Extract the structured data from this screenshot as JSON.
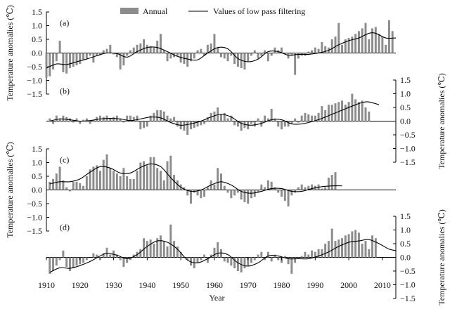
{
  "chart_data": {
    "type": "bar",
    "legend": {
      "position": "top",
      "items": [
        {
          "label": "Annual",
          "kind": "bar",
          "color": "#8c8c8c"
        },
        {
          "label": "Values of low pass filtering",
          "kind": "line",
          "color": "#000000"
        }
      ]
    },
    "x_axis": {
      "label": "Year",
      "range": [
        1910,
        2014
      ],
      "ticks": [
        1910,
        1920,
        1930,
        1940,
        1950,
        1960,
        1970,
        1980,
        1990,
        2000,
        2010
      ]
    },
    "y_axis": {
      "label": "Temperature anomalies (℃)",
      "range": [
        -1.5,
        1.5
      ],
      "ticks": [
        -1.5,
        -1.0,
        -0.5,
        0.0,
        0.5,
        1.0,
        1.5
      ],
      "tick_labels": [
        "−1.5",
        "−1.0",
        "−0.5",
        "0.0",
        "0.5",
        "1.0",
        "1.5"
      ]
    },
    "bar_color": "#8c8c8c",
    "line_color": "#000000",
    "panels": [
      {
        "label": "(a)",
        "axis_side": "left",
        "start_year": 1910,
        "annual": [
          -0.9,
          -0.85,
          -0.6,
          -0.3,
          0.45,
          -0.7,
          -0.75,
          -0.55,
          -0.5,
          -0.45,
          -0.4,
          -0.25,
          -0.2,
          -0.1,
          -0.35,
          -0.1,
          -0.05,
          0.1,
          0.15,
          0.3,
          -0.05,
          -0.15,
          -0.6,
          -0.45,
          -0.1,
          0.1,
          0.2,
          0.3,
          0.35,
          0.5,
          0.3,
          0.25,
          0.2,
          0.45,
          0.7,
          0.1,
          -0.3,
          -0.2,
          -0.15,
          -0.1,
          -0.35,
          -0.4,
          -0.5,
          -0.3,
          -0.2,
          0.1,
          0.15,
          -0.1,
          0.3,
          0.35,
          0.7,
          0.2,
          -0.15,
          -0.2,
          -0.3,
          -0.1,
          -0.4,
          -0.5,
          -0.55,
          -0.6,
          -0.3,
          -0.1,
          0.1,
          -0.2,
          -0.1,
          0.1,
          -0.3,
          -0.1,
          0.2,
          0.1,
          0.2,
          -0.05,
          -0.2,
          -0.1,
          -0.8,
          -0.2,
          -0.1,
          -0.1,
          0.05,
          0.1,
          0.2,
          0.15,
          0.4,
          0.25,
          0.2,
          0.5,
          0.6,
          1.1,
          0.3,
          0.5,
          0.55,
          0.6,
          0.7,
          0.8,
          0.9,
          1.1,
          0.5,
          0.9,
          0.95,
          0.7,
          0.6,
          0.3,
          1.2,
          0.8
        ],
        "smooth": [
          [
            1910,
            -0.55
          ],
          [
            1913,
            -0.4
          ],
          [
            1916,
            -0.42
          ],
          [
            1919,
            -0.32
          ],
          [
            1922,
            -0.22
          ],
          [
            1925,
            -0.1
          ],
          [
            1928,
            0.0
          ],
          [
            1931,
            -0.02
          ],
          [
            1934,
            -0.15
          ],
          [
            1937,
            0.05
          ],
          [
            1940,
            0.2
          ],
          [
            1943,
            0.2
          ],
          [
            1946,
            0.05
          ],
          [
            1949,
            -0.12
          ],
          [
            1952,
            -0.22
          ],
          [
            1955,
            -0.25
          ],
          [
            1958,
            0.0
          ],
          [
            1961,
            0.2
          ],
          [
            1964,
            0.15
          ],
          [
            1967,
            -0.2
          ],
          [
            1970,
            -0.32
          ],
          [
            1973,
            -0.22
          ],
          [
            1976,
            0.05
          ],
          [
            1979,
            0.05
          ],
          [
            1982,
            -0.08
          ],
          [
            1985,
            -0.05
          ],
          [
            1988,
            -0.05
          ],
          [
            1991,
            0.0
          ],
          [
            1994,
            0.1
          ],
          [
            1997,
            0.3
          ],
          [
            2000,
            0.45
          ],
          [
            2003,
            0.55
          ],
          [
            2006,
            0.72
          ],
          [
            2008,
            0.72
          ],
          [
            2011,
            0.55
          ],
          [
            2014,
            0.55
          ]
        ]
      },
      {
        "label": "(b)",
        "axis_side": "right",
        "start_year": 1911,
        "annual": [
          0.1,
          -0.1,
          0.2,
          0.1,
          0.2,
          0.15,
          0.1,
          -0.05,
          0.1,
          -0.1,
          0.05,
          0.1,
          -0.1,
          0.05,
          0.15,
          0.2,
          0.15,
          0.2,
          0.1,
          0.15,
          0.2,
          0.1,
          -0.05,
          0.2,
          0.2,
          0.15,
          0.2,
          -0.3,
          -0.25,
          -0.2,
          0.2,
          0.3,
          0.4,
          0.4,
          0.35,
          0.2,
          0.1,
          0.15,
          -0.2,
          -0.3,
          -0.35,
          -0.5,
          -0.3,
          -0.25,
          -0.2,
          -0.15,
          -0.1,
          0.15,
          0.3,
          0.35,
          0.5,
          0.25,
          0.3,
          0.1,
          0.2,
          -0.15,
          -0.2,
          -0.35,
          -0.25,
          -0.3,
          -0.1,
          -0.2,
          0.1,
          -0.2,
          0.2,
          0.1,
          0.45,
          0.1,
          -0.2,
          -0.3,
          -0.2,
          -0.2,
          -0.1,
          0.1,
          -0.05,
          0.2,
          0.3,
          0.25,
          0.2,
          0.2,
          0.3,
          0.55,
          0.4,
          0.6,
          0.6,
          0.65,
          0.7,
          0.75,
          0.6,
          0.7,
          1.0,
          0.8,
          0.7,
          0.75,
          0.5,
          0.35
        ],
        "smooth": [
          [
            1911,
            0.0
          ],
          [
            1914,
            0.08
          ],
          [
            1917,
            0.05
          ],
          [
            1920,
            0.0
          ],
          [
            1923,
            0.02
          ],
          [
            1926,
            0.08
          ],
          [
            1929,
            0.1
          ],
          [
            1932,
            0.08
          ],
          [
            1935,
            0.02
          ],
          [
            1938,
            0.08
          ],
          [
            1941,
            0.15
          ],
          [
            1944,
            0.12
          ],
          [
            1947,
            -0.05
          ],
          [
            1950,
            -0.15
          ],
          [
            1953,
            -0.1
          ],
          [
            1956,
            0.0
          ],
          [
            1959,
            0.15
          ],
          [
            1962,
            0.25
          ],
          [
            1965,
            0.15
          ],
          [
            1968,
            -0.08
          ],
          [
            1971,
            -0.15
          ],
          [
            1974,
            -0.08
          ],
          [
            1977,
            0.05
          ],
          [
            1980,
            0.05
          ],
          [
            1983,
            -0.1
          ],
          [
            1986,
            -0.1
          ],
          [
            1989,
            -0.02
          ],
          [
            1992,
            0.1
          ],
          [
            1995,
            0.25
          ],
          [
            1998,
            0.4
          ],
          [
            2001,
            0.55
          ],
          [
            2004,
            0.68
          ],
          [
            2006,
            0.7
          ],
          [
            2009,
            0.6
          ]
        ]
      },
      {
        "label": "(c)",
        "axis_side": "left",
        "start_year": 1911,
        "annual": [
          0.3,
          0.4,
          0.6,
          0.85,
          0.35,
          0.1,
          -0.05,
          0.3,
          0.3,
          0.25,
          0.15,
          0.5,
          0.75,
          0.85,
          0.9,
          0.7,
          1.1,
          1.3,
          0.8,
          0.7,
          0.6,
          0.5,
          0.8,
          0.5,
          0.4,
          0.4,
          0.7,
          1.0,
          1.05,
          0.9,
          1.2,
          1.2,
          0.8,
          0.7,
          0.35,
          1.05,
          1.25,
          0.55,
          0.35,
          0.2,
          0.1,
          -0.2,
          -0.5,
          -0.1,
          -0.2,
          -0.3,
          -0.25,
          0.1,
          0.35,
          0.2,
          0.8,
          0.6,
          0.15,
          -0.1,
          -0.3,
          -0.2,
          -0.1,
          -0.35,
          -0.45,
          -0.5,
          -0.3,
          -0.25,
          -0.1,
          0.2,
          0.1,
          0.35,
          0.3,
          0.1,
          -0.1,
          -0.25,
          -0.4,
          -0.6,
          -0.2,
          -0.1,
          0.1,
          0.2,
          0.1,
          0.15,
          0.2,
          0.15,
          0.2,
          0.05,
          0.1,
          0.45,
          0.55,
          0.65
        ],
        "smooth": [
          [
            1911,
            0.22
          ],
          [
            1914,
            0.3
          ],
          [
            1917,
            0.3
          ],
          [
            1920,
            0.4
          ],
          [
            1923,
            0.65
          ],
          [
            1926,
            0.85
          ],
          [
            1929,
            0.8
          ],
          [
            1932,
            0.62
          ],
          [
            1935,
            0.62
          ],
          [
            1938,
            0.82
          ],
          [
            1941,
            0.95
          ],
          [
            1944,
            0.85
          ],
          [
            1947,
            0.45
          ],
          [
            1950,
            0.1
          ],
          [
            1953,
            -0.05
          ],
          [
            1956,
            0.0
          ],
          [
            1959,
            0.18
          ],
          [
            1962,
            0.3
          ],
          [
            1965,
            0.18
          ],
          [
            1968,
            -0.05
          ],
          [
            1971,
            -0.12
          ],
          [
            1974,
            -0.05
          ],
          [
            1977,
            0.05
          ],
          [
            1980,
            0.05
          ],
          [
            1983,
            -0.05
          ],
          [
            1986,
            -0.05
          ],
          [
            1989,
            0.05
          ],
          [
            1992,
            0.12
          ],
          [
            1995,
            0.15
          ],
          [
            1998,
            0.15
          ]
        ]
      },
      {
        "label": "(d)",
        "axis_side": "right",
        "start_year": 1911,
        "annual": [
          -0.6,
          -0.5,
          -0.3,
          -0.1,
          0.25,
          -0.35,
          -0.5,
          -0.4,
          -0.3,
          -0.25,
          -0.2,
          -0.1,
          0.0,
          0.15,
          0.1,
          -0.1,
          0.15,
          0.35,
          0.1,
          0.25,
          0.1,
          -0.1,
          -0.35,
          -0.2,
          -0.1,
          0.1,
          0.2,
          0.3,
          0.7,
          0.6,
          0.65,
          0.5,
          0.7,
          0.8,
          0.6,
          0.4,
          1.2,
          0.6,
          0.4,
          0.2,
          0.0,
          -0.1,
          -0.3,
          -0.4,
          -0.2,
          -0.1,
          0.1,
          -0.2,
          0.1,
          0.35,
          0.55,
          0.3,
          -0.15,
          -0.2,
          -0.3,
          -0.4,
          -0.5,
          -0.55,
          -0.4,
          -0.3,
          -0.2,
          -0.1,
          0.1,
          0.2,
          -0.1,
          0.2,
          -0.15,
          0.1,
          -0.1,
          -0.2,
          0.05,
          -0.25,
          -0.6,
          -0.2,
          -0.05,
          0.05,
          0.2,
          0.1,
          0.25,
          0.2,
          0.3,
          0.3,
          0.5,
          0.6,
          1.05,
          0.6,
          0.65,
          0.7,
          0.8,
          0.85,
          0.95,
          1.0,
          0.9,
          0.5,
          0.6,
          0.3,
          0.8,
          0.7
        ],
        "smooth": [
          [
            1911,
            -0.55
          ],
          [
            1914,
            -0.38
          ],
          [
            1917,
            -0.4
          ],
          [
            1920,
            -0.3
          ],
          [
            1923,
            -0.15
          ],
          [
            1926,
            0.05
          ],
          [
            1928,
            0.15
          ],
          [
            1931,
            0.08
          ],
          [
            1934,
            -0.05
          ],
          [
            1937,
            0.1
          ],
          [
            1940,
            0.4
          ],
          [
            1943,
            0.6
          ],
          [
            1946,
            0.55
          ],
          [
            1949,
            0.3
          ],
          [
            1952,
            -0.1
          ],
          [
            1955,
            -0.2
          ],
          [
            1958,
            -0.05
          ],
          [
            1961,
            0.15
          ],
          [
            1964,
            0.1
          ],
          [
            1967,
            -0.2
          ],
          [
            1970,
            -0.32
          ],
          [
            1973,
            -0.2
          ],
          [
            1976,
            0.05
          ],
          [
            1979,
            0.05
          ],
          [
            1982,
            -0.05
          ],
          [
            1985,
            -0.05
          ],
          [
            1988,
            -0.05
          ],
          [
            1991,
            0.05
          ],
          [
            1994,
            0.2
          ],
          [
            1997,
            0.4
          ],
          [
            2000,
            0.55
          ],
          [
            2003,
            0.6
          ],
          [
            2006,
            0.65
          ],
          [
            2009,
            0.5
          ],
          [
            2012,
            0.3
          ],
          [
            2014,
            0.25
          ]
        ]
      }
    ]
  }
}
